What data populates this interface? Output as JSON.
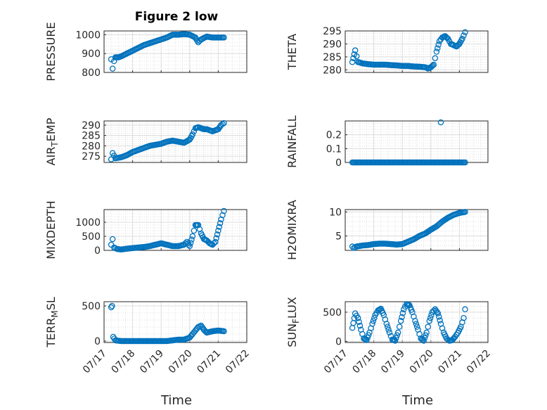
{
  "figure": {
    "title": "Figure 2 low",
    "xlabel": "Time",
    "marker_color": "#0072BD",
    "x_ticks": [
      "07/17",
      "07/18",
      "07/19",
      "07/20",
      "07/21",
      "07/22"
    ]
  },
  "chart_data": [
    {
      "type": "scatter",
      "ylabel": "PRESSURE",
      "title": "Figure 2 low",
      "ylim": [
        800,
        1020
      ],
      "yticks": [
        "800",
        "900",
        "1000"
      ],
      "x": [
        17.25,
        17.3,
        17.35,
        17.4,
        17.5,
        17.6,
        17.8,
        18.0,
        18.2,
        18.4,
        18.6,
        18.8,
        19.0,
        19.2,
        19.4,
        19.6,
        19.8,
        20.0,
        20.2,
        20.3,
        20.4,
        20.6,
        20.8,
        21.0,
        21.2
      ],
      "y": [
        870,
        820,
        860,
        880,
        880,
        885,
        900,
        915,
        930,
        945,
        955,
        965,
        975,
        985,
        1000,
        1000,
        1003,
        1000,
        985,
        960,
        975,
        990,
        985,
        985,
        985
      ],
      "grid": true
    },
    {
      "type": "scatter",
      "ylabel": "THETA",
      "ylim": [
        279,
        295
      ],
      "yticks": [
        "280",
        "285",
        "290",
        "295"
      ],
      "x": [
        17.25,
        17.35,
        17.45,
        17.6,
        17.8,
        18.0,
        18.2,
        18.4,
        18.6,
        18.8,
        19.0,
        19.2,
        19.4,
        19.6,
        19.8,
        19.9,
        20.0,
        20.1,
        20.2,
        20.3,
        20.4,
        20.5,
        20.6,
        20.7,
        20.8,
        20.9,
        21.0,
        21.1,
        21.2
      ],
      "y": [
        283,
        287.5,
        283,
        282.5,
        282.2,
        282,
        282,
        282,
        281.8,
        281.7,
        281.5,
        281.5,
        281.3,
        281.2,
        281,
        280.5,
        281,
        282,
        287,
        291,
        292.5,
        293,
        292,
        290,
        289.5,
        289,
        290,
        292,
        294.5
      ],
      "grid": true
    },
    {
      "type": "scatter",
      "ylabel": "AIR_TEMP",
      "ylabel_main": "AIR",
      "ylabel_sub": "T",
      "ylabel_rest": "EMP",
      "ylim": [
        272,
        292
      ],
      "yticks": [
        "275",
        "280",
        "285",
        "290"
      ],
      "x": [
        17.25,
        17.3,
        17.4,
        17.6,
        17.8,
        18.0,
        18.2,
        18.4,
        18.6,
        18.8,
        19.0,
        19.2,
        19.4,
        19.6,
        19.8,
        20.0,
        20.1,
        20.2,
        20.3,
        20.4,
        20.5,
        20.6,
        20.7,
        20.8,
        20.9,
        21.0,
        21.1,
        21.2
      ],
      "y": [
        273.5,
        276.5,
        274,
        274.5,
        275.5,
        277,
        278,
        279,
        280,
        280.5,
        281,
        282,
        282.5,
        282,
        281.5,
        283,
        285.5,
        288.5,
        289,
        288.5,
        288,
        288,
        287.5,
        287,
        287.5,
        288,
        290,
        291
      ],
      "grid": true
    },
    {
      "type": "scatter",
      "ylabel": "RAINFALL",
      "ylim": [
        0,
        0.3
      ],
      "yticks": [
        "0",
        "0.1",
        "0.2"
      ],
      "x": [
        17.25,
        17.4,
        17.6,
        17.8,
        18.0,
        18.2,
        18.4,
        18.6,
        18.8,
        19.0,
        19.2,
        19.4,
        19.6,
        19.8,
        20.0,
        20.2,
        20.4,
        20.6,
        20.8,
        21.0,
        21.2,
        20.35
      ],
      "y": [
        0,
        0,
        0,
        0,
        0,
        0,
        0,
        0,
        0,
        0,
        0,
        0,
        0,
        0,
        0,
        0,
        0,
        0,
        0,
        0,
        0,
        0.29
      ],
      "grid": true
    },
    {
      "type": "scatter",
      "ylabel": "MIXDEPTH",
      "ylim": [
        0,
        1450
      ],
      "yticks": [
        "0",
        "500",
        "1000"
      ],
      "x": [
        17.25,
        17.3,
        17.35,
        17.45,
        17.6,
        17.8,
        18.0,
        18.2,
        18.4,
        18.6,
        18.8,
        19.0,
        19.2,
        19.4,
        19.6,
        19.8,
        19.9,
        20.0,
        20.1,
        20.2,
        20.3,
        20.4,
        20.5,
        20.6,
        20.7,
        20.8,
        20.9,
        21.0,
        21.1,
        21.2
      ],
      "y": [
        200,
        400,
        100,
        50,
        30,
        60,
        80,
        100,
        120,
        150,
        200,
        250,
        200,
        150,
        150,
        200,
        300,
        150,
        500,
        900,
        900,
        600,
        400,
        350,
        250,
        200,
        300,
        700,
        1100,
        1400
      ],
      "grid": true
    },
    {
      "type": "scatter",
      "ylabel": "H2OMIXRA",
      "ylim": [
        2,
        10.5
      ],
      "yticks": [
        "5",
        "10"
      ],
      "x": [
        17.25,
        17.3,
        17.4,
        17.6,
        17.8,
        18.0,
        18.2,
        18.4,
        18.6,
        18.8,
        19.0,
        19.2,
        19.4,
        19.6,
        19.8,
        20.0,
        20.2,
        20.4,
        20.6,
        20.8,
        21.0,
        21.2
      ],
      "y": [
        2.8,
        2.5,
        2.8,
        3,
        3.1,
        3.3,
        3.4,
        3.4,
        3.3,
        3.2,
        3.3,
        3.8,
        4.3,
        5,
        5.5,
        6.3,
        7,
        8,
        8.8,
        9.4,
        9.8,
        10
      ],
      "grid": true
    },
    {
      "type": "scatter",
      "ylabel": "TERR_MSL",
      "ylabel_main": "TERR",
      "ylabel_sub": "M",
      "ylabel_rest": "SL",
      "ylim": [
        -20,
        560
      ],
      "yticks": [
        "0",
        "500"
      ],
      "x": [
        17.25,
        17.28,
        17.32,
        17.4,
        17.6,
        17.8,
        18.0,
        18.2,
        18.4,
        18.6,
        18.8,
        19.0,
        19.2,
        19.4,
        19.6,
        19.8,
        20.0,
        20.1,
        20.2,
        20.3,
        20.4,
        20.5,
        20.6,
        20.7,
        20.8,
        21.0,
        21.2
      ],
      "y": [
        480,
        500,
        60,
        10,
        0,
        0,
        0,
        0,
        0,
        0,
        0,
        0,
        0,
        10,
        20,
        20,
        50,
        100,
        150,
        200,
        220,
        160,
        120,
        130,
        140,
        150,
        140
      ],
      "grid": true
    },
    {
      "type": "scatter",
      "ylabel": "SUN_FLUX",
      "ylabel_main": "SUN",
      "ylabel_sub": "F",
      "ylabel_rest": "LUX",
      "ylim": [
        -20,
        680
      ],
      "yticks": [
        "0",
        "500"
      ],
      "x": [
        17.25,
        17.35,
        17.45,
        17.55,
        17.65,
        17.75,
        17.85,
        17.95,
        18.05,
        18.15,
        18.25,
        18.35,
        18.45,
        18.55,
        18.65,
        18.75,
        18.85,
        18.95,
        19.05,
        19.15,
        19.25,
        19.35,
        19.45,
        19.55,
        19.65,
        19.75,
        19.85,
        19.95,
        20.05,
        20.15,
        20.25,
        20.35,
        20.45,
        20.55,
        20.65,
        20.75,
        20.85,
        20.95,
        21.05,
        21.15,
        21.2
      ],
      "y": [
        230,
        480,
        400,
        200,
        50,
        20,
        150,
        300,
        450,
        530,
        560,
        450,
        300,
        150,
        30,
        10,
        150,
        350,
        550,
        640,
        620,
        500,
        350,
        200,
        50,
        10,
        150,
        350,
        500,
        550,
        480,
        300,
        150,
        50,
        10,
        20,
        80,
        150,
        250,
        400,
        550
      ],
      "grid": true
    }
  ]
}
